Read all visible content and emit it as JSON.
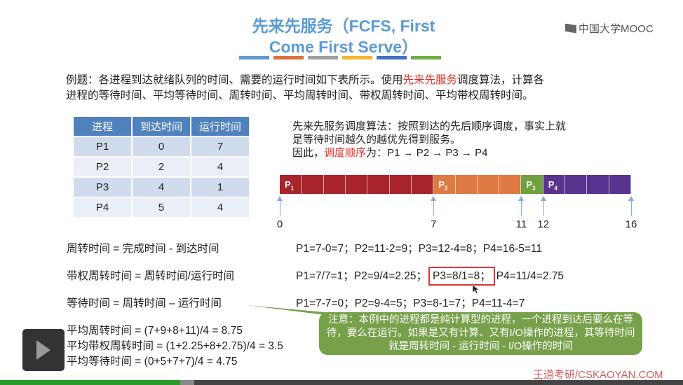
{
  "slide": {
    "title_line1": "先来先服务（FCFS, First",
    "title_line2": "Come First Serve）",
    "title_bar_colors": [
      "#5b9bd5",
      "#e0703a",
      "#a0a0a0",
      "#f2b632",
      "#4472c4",
      "#70ad47"
    ],
    "logo": "中国大学MOOC",
    "intro_1": "例题：各进程到达就绪队列的时间、需要的运行时间如下表所示。使用",
    "intro_red": "先来先服务",
    "intro_2": "调度算法，计算各",
    "intro_3": "进程的等待时间、平均等待时间、周转时间、平均周转时间、带权周转时间、平均带权周转时间。",
    "table": {
      "headers": [
        "进程",
        "到达时间",
        "运行时间"
      ],
      "rows": [
        [
          "P1",
          "0",
          "7"
        ],
        [
          "P2",
          "2",
          "4"
        ],
        [
          "P3",
          "4",
          "1"
        ],
        [
          "P4",
          "5",
          "4"
        ]
      ]
    },
    "algo_1": "先来先服务调度算法：按照到达的先后顺序调度，事实上就",
    "algo_2": "是等待时间越久的越优先得到服务。",
    "algo_3a": "因此，",
    "algo_3red": "调度顺序",
    "algo_3b": "为：P1 → P2 → P3 → P4",
    "gantt": {
      "total": 16,
      "segments": [
        {
          "name": "P",
          "sub": "1",
          "start": 0,
          "end": 7,
          "color": "#a8232a"
        },
        {
          "name": "P",
          "sub": "2",
          "start": 7,
          "end": 11,
          "color": "#e07a45"
        },
        {
          "name": "P",
          "sub": "3",
          "start": 11,
          "end": 12,
          "color": "#70a040"
        },
        {
          "name": "P",
          "sub": "4",
          "start": 12,
          "end": 16,
          "color": "#5a3290"
        }
      ],
      "ticks": [
        "0",
        "7",
        "11",
        "12",
        "16"
      ]
    },
    "formulas": [
      {
        "label": "周转时间 = 完成时间 - 到达时间",
        "value": "P1=7-0=7；P2=11-2=9；P3=12-4=8；P4=16-5=11"
      },
      {
        "label": "带权周转时间 = 周转时间/运行时间",
        "value_a": "P1=7/7=1；P2=9/4=2.25；",
        "value_box": "P3=8/1=8；",
        "value_b": "P4=11/4=2.75"
      },
      {
        "label": "等待时间 = 周转时间 – 运行时间",
        "value": "P1=7-7=0；P2=9-4=5；P3=8-1=7；P4=11-4=7"
      }
    ],
    "averages": [
      "平均周转时间 = (7+9+8+11)/4 = 8.75",
      "平均带权周转时间 = (1+2.25+8+2.75)/4 = 3.5",
      "平均等待时间 = (0+5+7+7)/4 = 4.75"
    ],
    "note": "注意：本例中的进程都是纯计算型的进程，一个进程到达后要么在等待，要么在运行。如果是又有计算、又有I/O操作的进程，其等待时间就是周转时间 - 运行时间 - I/O操作的时间",
    "watermark": "王道考研/CSKAOYAN.COM"
  },
  "player": {
    "progress_percent": 26.4
  }
}
